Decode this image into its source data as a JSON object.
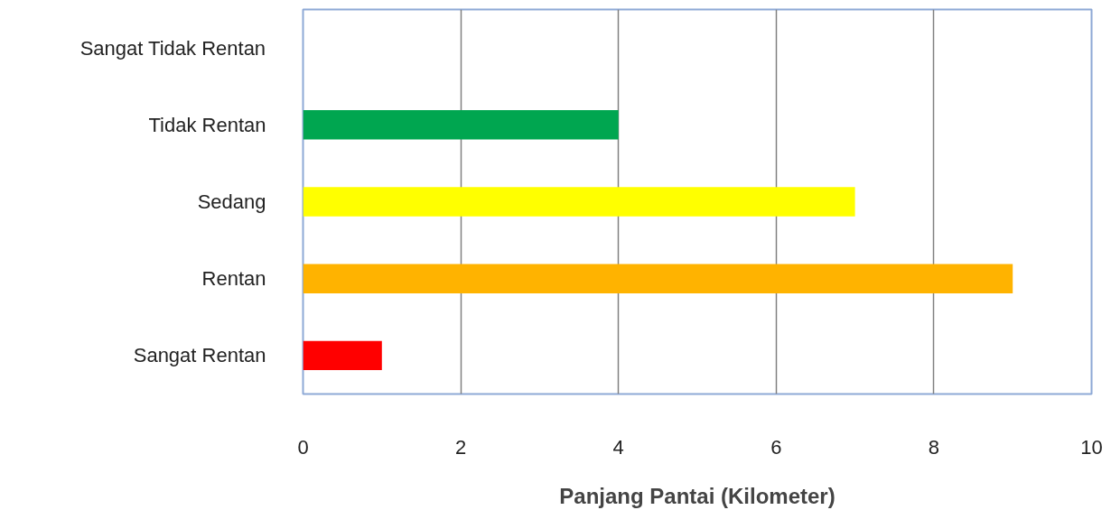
{
  "chart_data": {
    "type": "bar",
    "orientation": "horizontal",
    "xlabel": "Panjang Pantai (Kilometer)",
    "categories": [
      "Sangat Tidak Rentan",
      "Tidak Rentan",
      "Sedang",
      "Rentan",
      "Sangat Rentan"
    ],
    "values": [
      0,
      4,
      7,
      9,
      1
    ],
    "colors": [
      "#00a650",
      "#00a650",
      "#ffff00",
      "#ffb300",
      "#ff0000"
    ],
    "xlim": [
      0,
      10
    ],
    "xticks": [
      0,
      2,
      4,
      6,
      8,
      10
    ],
    "grid": "x"
  }
}
